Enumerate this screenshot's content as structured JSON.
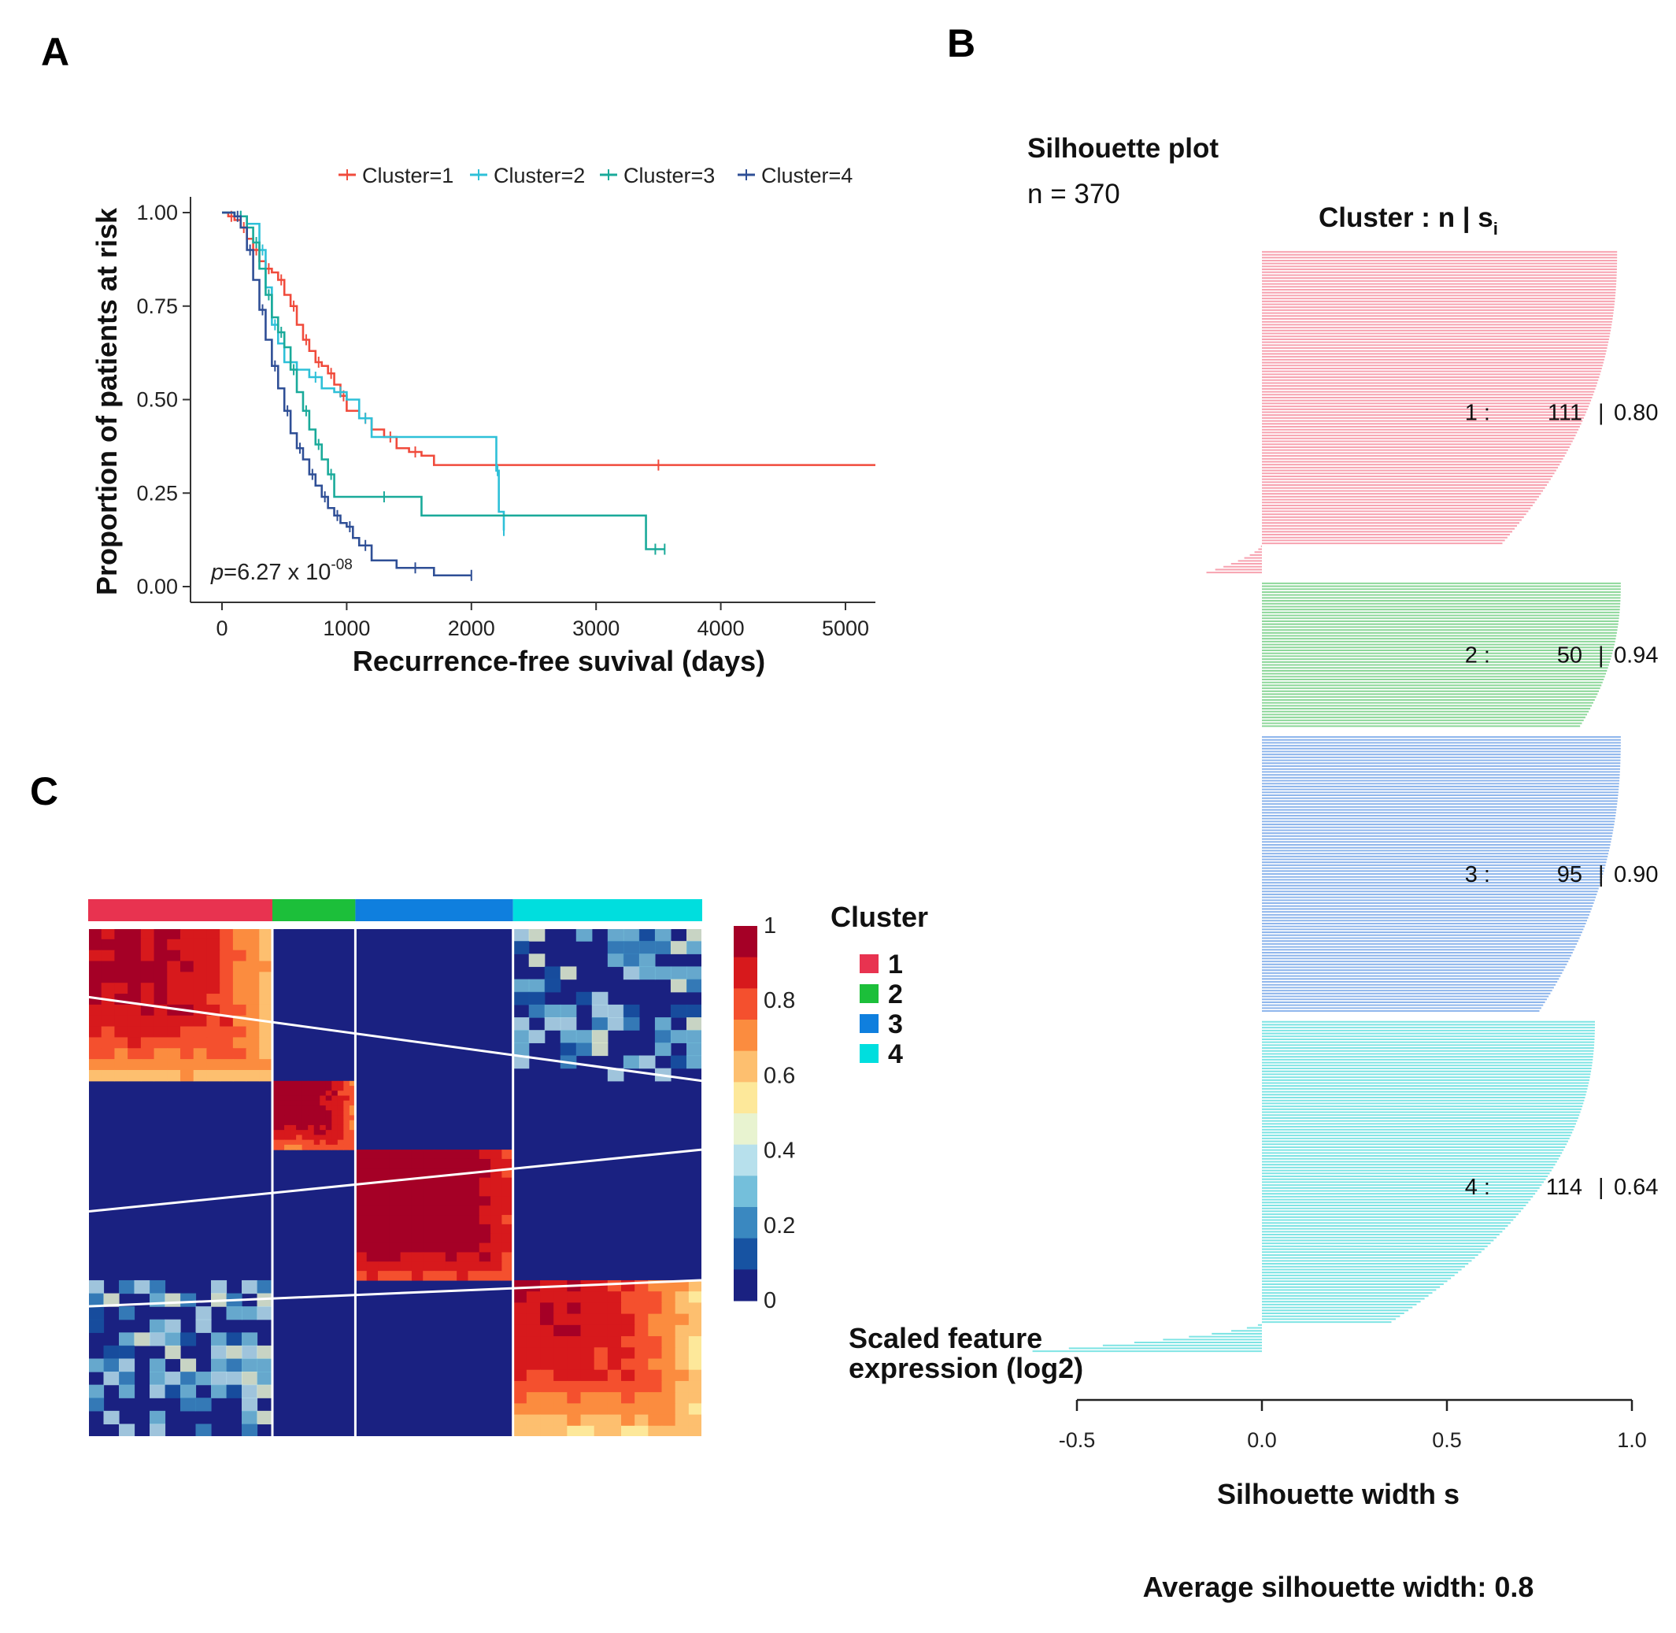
{
  "panels": {
    "a": "A",
    "b": "B",
    "c": "C"
  },
  "colors": {
    "cluster1": "#f04b3c",
    "cluster2": "#2ec0d8",
    "cluster3": "#1aaa9a",
    "cluster4": "#2f4f96",
    "sil1": "#f7a3b1",
    "sil2": "#8dd79a",
    "sil3": "#8fb6ec",
    "sil4": "#7fe4e4",
    "hm1": "#e83350",
    "hm2": "#1cbf3a",
    "hm3": "#0f7fde",
    "hm4": "#00dede"
  },
  "chart_data": [
    {
      "type": "line",
      "panel": "A",
      "subtype": "kaplan-meier",
      "xlabel": "Recurrence-free suvival (days)",
      "ylabel": "Proportion of patients at risk",
      "xlim": [
        -250,
        5300
      ],
      "ylim": [
        0,
        1.05
      ],
      "xticks": [
        0,
        1000,
        2000,
        3000,
        4000,
        5000
      ],
      "yticks": [
        0.0,
        0.25,
        0.5,
        0.75,
        1.0
      ],
      "ytick_labels": [
        "0.00",
        "0.25",
        "0.50",
        "0.75",
        "1.00"
      ],
      "pvalue": {
        "prefix": "p",
        "text": "=6.27 x 10",
        "exp": "-08"
      },
      "series": [
        {
          "name": "Cluster=1",
          "color_key": "cluster1",
          "x": [
            0,
            50,
            100,
            150,
            200,
            250,
            300,
            350,
            400,
            450,
            500,
            550,
            600,
            650,
            700,
            750,
            800,
            850,
            900,
            950,
            1000,
            1100,
            1200,
            1300,
            1400,
            1500,
            1600,
            1700,
            5300
          ],
          "y": [
            1.0,
            0.99,
            0.98,
            0.96,
            0.93,
            0.9,
            0.87,
            0.85,
            0.84,
            0.82,
            0.78,
            0.75,
            0.7,
            0.66,
            0.63,
            0.6,
            0.59,
            0.57,
            0.54,
            0.51,
            0.47,
            0.45,
            0.42,
            0.4,
            0.37,
            0.36,
            0.35,
            0.325,
            0.325
          ]
        },
        {
          "name": "Cluster=2",
          "color_key": "cluster2",
          "x": [
            0,
            100,
            200,
            300,
            350,
            400,
            450,
            500,
            600,
            700,
            800,
            900,
            1000,
            1100,
            1200,
            2200,
            2220,
            2260
          ],
          "y": [
            1.0,
            0.99,
            0.97,
            0.9,
            0.8,
            0.7,
            0.65,
            0.6,
            0.58,
            0.56,
            0.53,
            0.52,
            0.5,
            0.45,
            0.4,
            0.31,
            0.2,
            0.15
          ]
        },
        {
          "name": "Cluster=3",
          "color_key": "cluster3",
          "x": [
            0,
            100,
            200,
            250,
            300,
            350,
            400,
            450,
            500,
            550,
            600,
            650,
            700,
            750,
            800,
            850,
            900,
            1000,
            1600,
            3400,
            3550
          ],
          "y": [
            1.0,
            0.99,
            0.96,
            0.92,
            0.85,
            0.78,
            0.72,
            0.68,
            0.64,
            0.58,
            0.52,
            0.47,
            0.42,
            0.38,
            0.34,
            0.3,
            0.24,
            0.24,
            0.19,
            0.1,
            0.1
          ]
        },
        {
          "name": "Cluster=4",
          "color_key": "cluster4",
          "x": [
            0,
            100,
            150,
            200,
            250,
            300,
            350,
            400,
            450,
            500,
            550,
            600,
            650,
            700,
            750,
            800,
            850,
            900,
            950,
            1000,
            1050,
            1100,
            1200,
            1400,
            1700,
            2000
          ],
          "y": [
            1.0,
            0.99,
            0.96,
            0.9,
            0.82,
            0.74,
            0.66,
            0.59,
            0.53,
            0.47,
            0.41,
            0.37,
            0.34,
            0.3,
            0.27,
            0.24,
            0.21,
            0.19,
            0.17,
            0.16,
            0.13,
            0.11,
            0.07,
            0.05,
            0.03,
            0.03
          ]
        }
      ]
    },
    {
      "type": "bar",
      "panel": "B",
      "subtype": "silhouette",
      "title": "Silhouette plot",
      "n_label": "n = 370",
      "header": "Cluster : n | s",
      "header_sub": "i",
      "xlabel": "Silhouette width s",
      "xlim": [
        -0.5,
        1.0
      ],
      "xticks": [
        -0.5,
        0.0,
        0.5,
        1.0
      ],
      "xtick_labels": [
        "-0.5",
        "0.0",
        "0.5",
        "1.0"
      ],
      "average_label": "Average silhouette width: 0.8",
      "clusters": [
        {
          "id": "1",
          "n": 111,
          "n_label": "111",
          "s_label": "0.80",
          "color_key": "sil1",
          "max": 0.96,
          "tail": 0.65,
          "neg": -0.15
        },
        {
          "id": "2",
          "n": 50,
          "n_label": "50",
          "s_label": "0.94",
          "color_key": "sil2",
          "max": 0.97,
          "tail": 0.86,
          "neg": 0
        },
        {
          "id": "3",
          "n": 95,
          "n_label": "95",
          "s_label": "0.90",
          "color_key": "sil3",
          "max": 0.97,
          "tail": 0.75,
          "neg": 0
        },
        {
          "id": "4",
          "n": 114,
          "n_label": "114",
          "s_label": "0.64",
          "color_key": "sil4",
          "max": 0.9,
          "tail": 0.35,
          "neg": -0.62
        }
      ]
    },
    {
      "type": "heatmap",
      "panel": "C",
      "subtype": "consensus-matrix",
      "groups": [
        {
          "id": "1",
          "n": 111,
          "color_key": "hm1"
        },
        {
          "id": "2",
          "n": 50,
          "color_key": "hm2"
        },
        {
          "id": "3",
          "n": 95,
          "color_key": "hm3"
        },
        {
          "id": "4",
          "n": 114,
          "color_key": "hm4"
        }
      ],
      "cluster_legend_title": "Cluster",
      "cluster_legend_items": [
        "1",
        "2",
        "3",
        "4"
      ],
      "colorbar_title_line1": "Scaled feature",
      "colorbar_title_line2": "expression (log2)",
      "colorbar_ticks": [
        1,
        0.8,
        0.6,
        0.4,
        0.2,
        0
      ],
      "colorbar_tick_labels": [
        "1",
        "0.8",
        "0.6",
        "0.4",
        "0.2",
        "0"
      ],
      "colorbar_colors": [
        "#a50026",
        "#d7191c",
        "#f4502e",
        "#fb8c3f",
        "#fdbf6f",
        "#fde89a",
        "#e8f3d0",
        "#b7e0ec",
        "#74bfdb",
        "#3a88c0",
        "#1753a2",
        "#1a2181"
      ]
    }
  ]
}
